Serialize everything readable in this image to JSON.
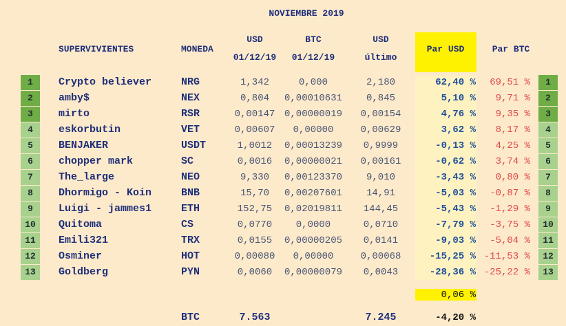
{
  "title": "NOVIEMBRE 2019",
  "headers": {
    "name": "SUPERVIVIENTES",
    "coin": "MONEDA",
    "usd": [
      "USD",
      "01/12/19"
    ],
    "btc": [
      "BTC",
      "01/12/19"
    ],
    "usd_last": [
      "USD",
      "último"
    ],
    "par_usd": "Par USD",
    "par_btc": "Par BTC"
  },
  "rows": [
    [
      "1",
      "Crypto believer",
      "NRG",
      "1,342",
      "0,000",
      "2,180",
      "62,40 %",
      "69,51 %"
    ],
    [
      "2",
      "amby$",
      "NEX",
      "0,804",
      "0,00010631",
      "0,845",
      "5,10 %",
      "9,71 %"
    ],
    [
      "3",
      "mirto",
      "RSR",
      "0,00147",
      "0,00000019",
      "0,00154",
      "4,76 %",
      "9,35 %"
    ],
    [
      "4",
      "eskorbutin",
      "VET",
      "0,00607",
      "0,00000",
      "0,00629",
      "3,62 %",
      "8,17 %"
    ],
    [
      "5",
      "BENJAKER",
      "USDT",
      "1,0012",
      "0,00013239",
      "0,9999",
      "-0,13 %",
      "4,25 %"
    ],
    [
      "6",
      "chopper mark",
      "SC",
      "0,0016",
      "0,00000021",
      "0,00161",
      "-0,62 %",
      "3,74 %"
    ],
    [
      "7",
      "The_large",
      "NEO",
      "9,330",
      "0,00123370",
      "9,010",
      "-3,43 %",
      "0,80 %"
    ],
    [
      "8",
      "Dhormigo - Koin",
      "BNB",
      "15,70",
      "0,00207601",
      "14,91",
      "-5,03 %",
      "-0,87 %"
    ],
    [
      "9",
      "Luigi - jammes1",
      "ETH",
      "152,75",
      "0,02019811",
      "144,45",
      "-5,43 %",
      "-1,29 %"
    ],
    [
      "10",
      "Quitoma",
      "CS",
      "0,0770",
      "0,0000",
      "0,0710",
      "-7,79 %",
      "-3,75 %"
    ],
    [
      "11",
      "Emili321",
      "TRX",
      "0,0155",
      "0,00000205",
      "0,0141",
      "-9,03 %",
      "-5,04 %"
    ],
    [
      "12",
      "Osminer",
      "HOT",
      "0,00080",
      "0,00000",
      "0,00068",
      "-15,25 %",
      "-11,53 %"
    ],
    [
      "13",
      "Goldberg",
      "PYN",
      "0,0060",
      "0,00000079",
      "0,0043",
      "-28,36 %",
      "-25,22 %"
    ]
  ],
  "total_par_usd": "0,06 %",
  "footer": {
    "coin": "BTC",
    "usd": "7.563",
    "usd_last": "7.245",
    "par_usd": "-4,20 %"
  }
}
